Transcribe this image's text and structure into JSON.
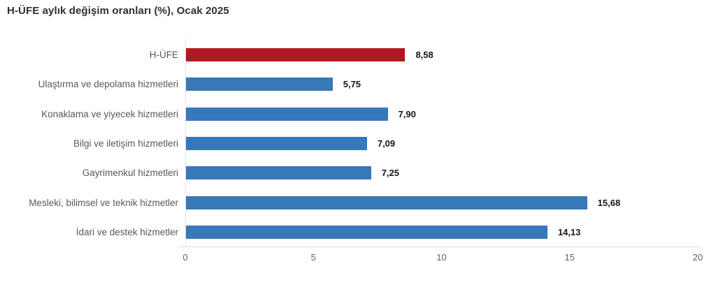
{
  "title": "H-ÜFE aylık değişim oranları (%), Ocak 2025",
  "colors": {
    "highlight_bar_red": "#ae1a22",
    "bar_blue": "#3778b8",
    "axis_line": "#dcdcdc",
    "zero_gridline": "#e4e4e4",
    "title_text": "#2f2f2f",
    "category_text": "#595959",
    "value_text": "#161616",
    "tick_text": "#616161"
  },
  "chart_data": {
    "type": "bar",
    "orientation": "horizontal",
    "title": "H-ÜFE aylık değişim oranları (%), Ocak 2025",
    "categories": [
      "H-ÜFE",
      "Ulaştırma ve depolama hizmetleri",
      "Konaklama ve yiyecek hizmetleri",
      "Bilgi ve iletişim hizmetleri",
      "Gayrimenkul hizmetleri",
      "Mesleki, bilimsel ve teknik hizmetler",
      "İdari ve destek hizmetler"
    ],
    "values": [
      8.58,
      5.75,
      7.9,
      7.09,
      7.25,
      15.68,
      14.13
    ],
    "value_labels": [
      "8,58",
      "5,75",
      "7,90",
      "7,09",
      "7,25",
      "15,68",
      "14,13"
    ],
    "bar_colors": [
      "#ae1a22",
      "#3778b8",
      "#3778b8",
      "#3778b8",
      "#3778b8",
      "#3778b8",
      "#3778b8"
    ],
    "xlabel": "",
    "ylabel": "",
    "xlim": [
      0,
      20
    ],
    "xticks": [
      0,
      5,
      10,
      15,
      20
    ],
    "xtick_labels": [
      "0",
      "5",
      "10",
      "15",
      "20"
    ],
    "grid": false,
    "legend": null,
    "data_labels": true
  }
}
